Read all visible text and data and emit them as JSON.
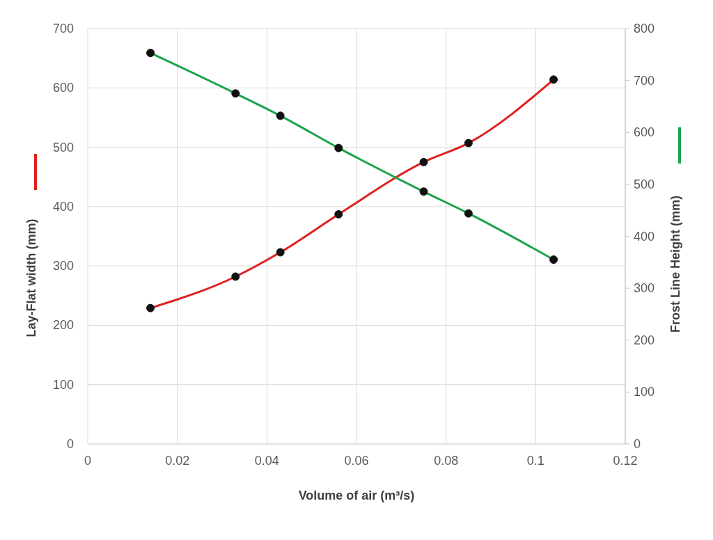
{
  "chart_data": {
    "type": "line",
    "xlabel": "Volume of air (m³/s)",
    "ylabel": "Lay-Flat width (mm)",
    "y2label": "Frost Line Height (mm)",
    "x": [
      0.014,
      0.033,
      0.043,
      0.056,
      0.075,
      0.085,
      0.104
    ],
    "series": [
      {
        "color": "#e0201e",
        "values": [
          229,
          282,
          323,
          387,
          475,
          507,
          614
        ]
      },
      {
        "color": "#1aa34a",
        "axis": "y2",
        "values": [
          753,
          675,
          632,
          570,
          486,
          444,
          355
        ]
      }
    ],
    "xlim": [
      0,
      0.12
    ],
    "xticks": [
      0,
      0.02,
      0.04,
      0.06,
      0.08,
      0.1,
      0.12
    ],
    "ylim": [
      0,
      700
    ],
    "yticks": [
      0,
      100,
      200,
      300,
      400,
      500,
      600,
      700
    ],
    "y2lim": [
      0,
      800
    ],
    "y2ticks": [
      0,
      100,
      200,
      300,
      400,
      500,
      600,
      700,
      800
    ],
    "grid": true,
    "marker": "circle",
    "line_style": "solid"
  }
}
